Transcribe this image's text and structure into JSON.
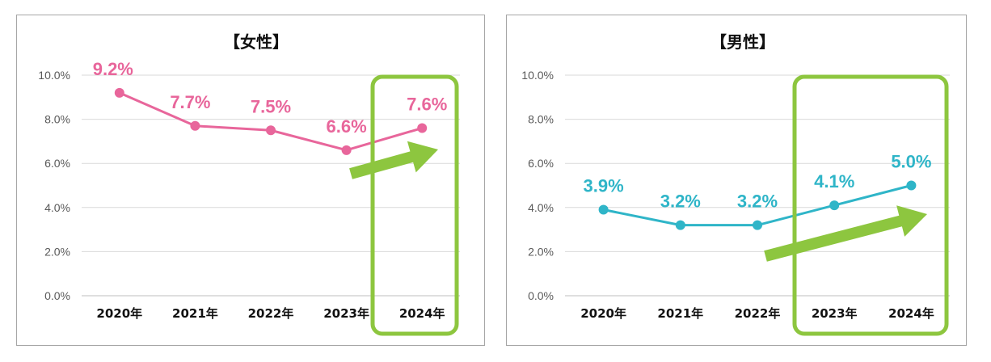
{
  "chart_data": [
    {
      "type": "line",
      "title": "【女性】",
      "categories": [
        "2020年",
        "2021年",
        "2022年",
        "2023年",
        "2024年"
      ],
      "values": [
        9.2,
        7.7,
        7.5,
        6.6,
        7.6
      ],
      "value_labels": [
        "9.2%",
        "7.7%",
        "7.5%",
        "6.6%",
        "7.6%"
      ],
      "y_ticks": [
        "0.0%",
        "2.0%",
        "4.0%",
        "6.0%",
        "8.0%",
        "10.0%"
      ],
      "ylim": [
        0,
        10
      ],
      "grid": true,
      "series_color": "#e8669b",
      "highlight_color": "#8dc63f",
      "highlight_categories": [
        "2024年"
      ],
      "annotation": "upward trend arrow"
    },
    {
      "type": "line",
      "title": "【男性】",
      "categories": [
        "2020年",
        "2021年",
        "2022年",
        "2023年",
        "2024年"
      ],
      "values": [
        3.9,
        3.2,
        3.2,
        4.1,
        5.0
      ],
      "value_labels": [
        "3.9%",
        "3.2%",
        "3.2%",
        "4.1%",
        "5.0%"
      ],
      "y_ticks": [
        "0.0%",
        "2.0%",
        "4.0%",
        "6.0%",
        "8.0%",
        "10.0%"
      ],
      "ylim": [
        0,
        10
      ],
      "grid": true,
      "series_color": "#2fb5c8",
      "highlight_color": "#8dc63f",
      "highlight_categories": [
        "2023年",
        "2024年"
      ],
      "annotation": "upward trend arrow"
    }
  ]
}
